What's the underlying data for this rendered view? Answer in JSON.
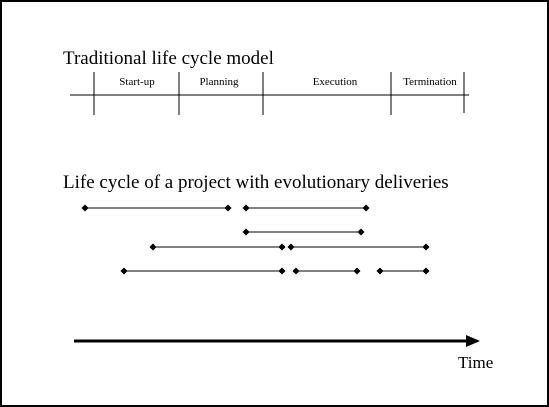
{
  "traditional": {
    "title": "Traditional life cycle model",
    "phases": [
      "Start-up",
      "Planning",
      "Execution",
      "Termination"
    ]
  },
  "evolutionary": {
    "title": "Life cycle of a project with evolutionary deliveries"
  },
  "time_axis": {
    "label": "Time"
  },
  "colors": {
    "ink": "#000000",
    "background": "#ffffff"
  }
}
